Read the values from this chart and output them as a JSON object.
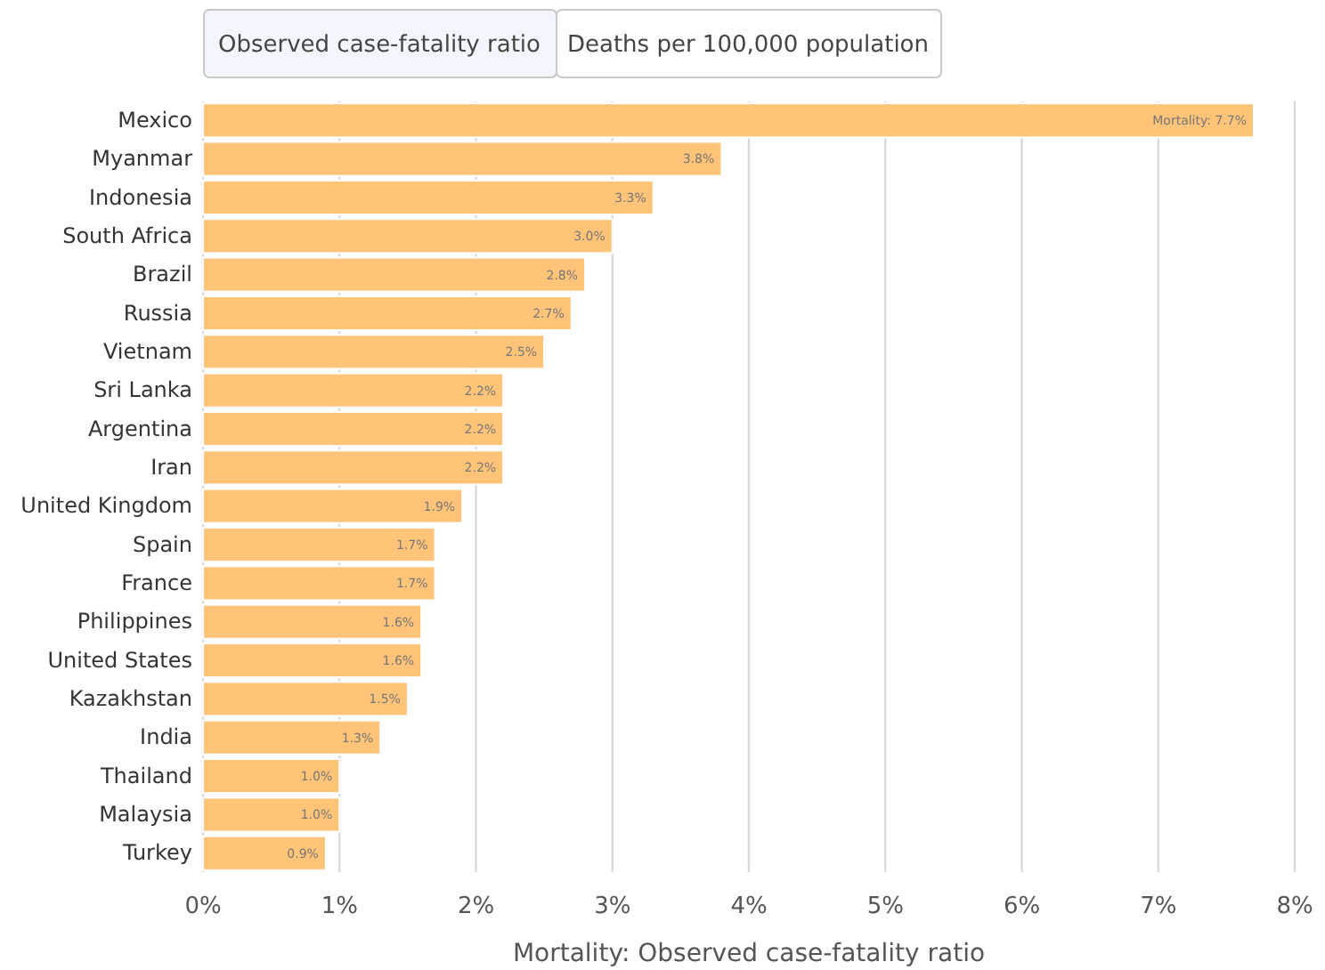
{
  "chart_data": {
    "type": "bar",
    "orientation": "horizontal",
    "xlabel": "Mortality: Observed case-fatality ratio",
    "annotations": [
      "Observed case-fatality ratio",
      "Deaths per 100,000 population"
    ],
    "categories": [
      "Mexico",
      "Myanmar",
      "Indonesia",
      "South Africa",
      "Brazil",
      "Russia",
      "Vietnam",
      "Sri Lanka",
      "Argentina",
      "Iran",
      "United Kingdom",
      "Spain",
      "France",
      "Philippines",
      "United States",
      "Kazakhstan",
      "India",
      "Thailand",
      "Malaysia",
      "Turkey"
    ],
    "values": [
      7.7,
      3.8,
      3.3,
      3.0,
      2.8,
      2.7,
      2.5,
      2.2,
      2.2,
      2.2,
      1.9,
      1.7,
      1.7,
      1.6,
      1.6,
      1.5,
      1.3,
      1.0,
      1.0,
      0.9
    ],
    "value_labels": [
      "Mortality: 7.7%",
      "3.8%",
      "3.3%",
      "3.0%",
      "2.8%",
      "2.7%",
      "2.5%",
      "2.2%",
      "2.2%",
      "2.2%",
      "1.9%",
      "1.7%",
      "1.7%",
      "1.6%",
      "1.6%",
      "1.5%",
      "1.3%",
      "1.0%",
      "1.0%",
      "0.9%"
    ],
    "color": "#ffc478",
    "xlim": [
      0,
      8
    ],
    "xticks": [
      {
        "value": 0,
        "label": "0%"
      },
      {
        "value": 1,
        "label": "1%"
      },
      {
        "value": 2,
        "label": "2%"
      },
      {
        "value": 3,
        "label": "3%"
      },
      {
        "value": 4,
        "label": "4%"
      },
      {
        "value": 5,
        "label": "5%"
      },
      {
        "value": 6,
        "label": "6%"
      },
      {
        "value": 7,
        "label": "7%"
      },
      {
        "value": 8,
        "label": "8%"
      }
    ],
    "grid": "x"
  }
}
